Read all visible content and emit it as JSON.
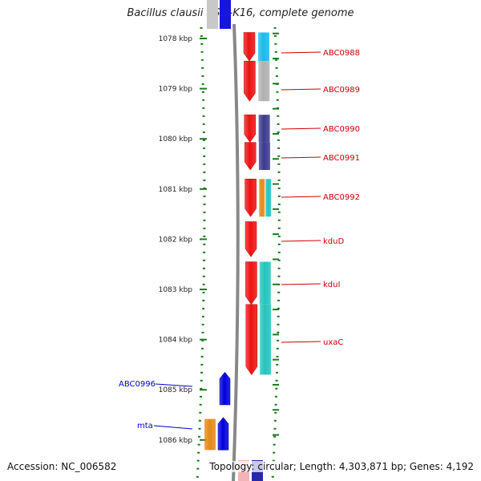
{
  "title": "Bacillus clausii KSM-K16, complete genome",
  "accession": "Accession: NC_006582",
  "summary": "Topology: circular; Length: 4,303,871 bp; Genes: 4,192",
  "scale": {
    "ticks": [
      "1078 kbp",
      "1079 kbp",
      "1080 kbp",
      "1081 kbp",
      "1082 kbp",
      "1083 kbp",
      "1084 kbp",
      "1085 kbp",
      "1086 kbp"
    ]
  },
  "genes_right": [
    {
      "name": "ABC0988",
      "start_kbp": 1077.88,
      "end_kbp": 1078.45,
      "color": "#1db8f0"
    },
    {
      "name": "ABC0989",
      "start_kbp": 1078.45,
      "end_kbp": 1079.25,
      "color": "#b0b0b0"
    },
    {
      "name": "ABC0990",
      "start_kbp": 1079.52,
      "end_kbp": 1080.07,
      "color": "#3b3a8c"
    },
    {
      "name": "ABC0991",
      "start_kbp": 1080.07,
      "end_kbp": 1080.62,
      "color": "#3b3a8c"
    },
    {
      "name": "ABC0992",
      "start_kbp": 1080.8,
      "end_kbp": 1081.55,
      "color": "#e58a17",
      "color2": "#1ec8c0"
    },
    {
      "name": "kduD",
      "start_kbp": 1081.65,
      "end_kbp": 1082.35,
      "color": ""
    },
    {
      "name": "kduI",
      "start_kbp": 1082.45,
      "end_kbp": 1083.3,
      "color": "#22c4be"
    },
    {
      "name": "uxaC",
      "start_kbp": 1083.3,
      "end_kbp": 1084.7,
      "color": "#22c4be"
    }
  ],
  "genes_left": [
    {
      "name": "ABC0996",
      "start_kbp": 1084.65,
      "end_kbp": 1085.3,
      "color": "#0000dd"
    },
    {
      "name": "mta",
      "start_kbp": 1085.55,
      "end_kbp": 1086.2,
      "color": "#0000dd",
      "color2": "#e58a17"
    }
  ],
  "colors": {
    "forward_track": "#ee1111",
    "label_forward": "#cc0000",
    "label_reverse": "#0000cc",
    "tick_green": "#1a7a1a",
    "backbone": "#888888"
  }
}
